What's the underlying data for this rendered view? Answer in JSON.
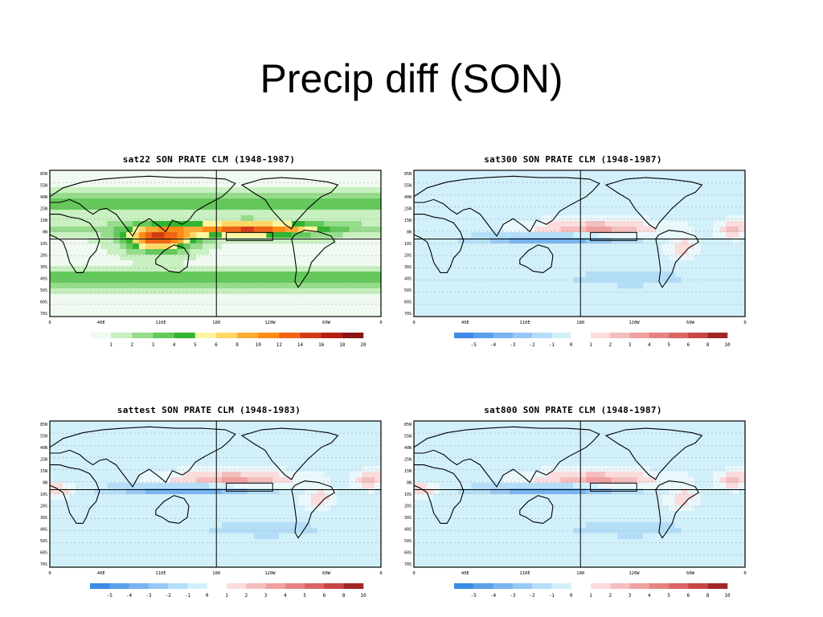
{
  "slide": {
    "title": "Precip diff (SON)"
  },
  "panels": [
    {
      "id": "tl",
      "title": "sat22 SON PRATE CLM (1948-1987)",
      "mode": "abs",
      "colorbar": {
        "labels": [
          "1",
          "2",
          "3",
          "4",
          "5",
          "6",
          "8",
          "10",
          "12",
          "14",
          "16",
          "18",
          "20"
        ],
        "colors": [
          "#f0faf0",
          "#c8f0c0",
          "#96dc8c",
          "#64c85a",
          "#32b432",
          "#fff5a0",
          "#ffd764",
          "#ffaa32",
          "#ff8c14",
          "#f06414",
          "#d23c14",
          "#b41e14",
          "#8c1414"
        ]
      }
    },
    {
      "id": "tr",
      "title": "sat300 SON PRATE CLM (1948-1987)",
      "mode": "diffA",
      "colorbar": {
        "labels": [
          "-5",
          "-4",
          "-3",
          "-2",
          "-1",
          "0",
          "1",
          "2",
          "3",
          "4",
          "5",
          "6",
          "8",
          "10"
        ],
        "colors": [
          "#3c8ce6",
          "#5aa0eb",
          "#78b4f0",
          "#96c8f5",
          "#b4def8",
          "#d2f0fa",
          "#ffffff",
          "#fadcdc",
          "#f5bebe",
          "#f0a0a0",
          "#e68282",
          "#dc6464",
          "#c84646",
          "#a02828"
        ]
      }
    },
    {
      "id": "bl",
      "title": "sattest SON PRATE CLM (1948-1983)",
      "mode": "diffB",
      "colorbar": {
        "labels": [
          "-5",
          "-4",
          "-3",
          "-2",
          "-1",
          "0",
          "1",
          "2",
          "3",
          "4",
          "5",
          "6",
          "8",
          "10"
        ],
        "colors": [
          "#3c8ce6",
          "#5aa0eb",
          "#78b4f0",
          "#96c8f5",
          "#b4def8",
          "#d2f0fa",
          "#ffffff",
          "#fadcdc",
          "#f5bebe",
          "#f0a0a0",
          "#e68282",
          "#dc6464",
          "#c84646",
          "#a02828"
        ]
      }
    },
    {
      "id": "br",
      "title": "sat800 SON PRATE CLM (1948-1987)",
      "mode": "diffB",
      "colorbar": {
        "labels": [
          "-5",
          "-4",
          "-3",
          "-2",
          "-1",
          "0",
          "1",
          "2",
          "3",
          "4",
          "5",
          "6",
          "8",
          "10"
        ],
        "colors": [
          "#3c8ce6",
          "#5aa0eb",
          "#78b4f0",
          "#96c8f5",
          "#b4def8",
          "#d2f0fa",
          "#ffffff",
          "#fadcdc",
          "#f5bebe",
          "#f0a0a0",
          "#e68282",
          "#dc6464",
          "#c84646",
          "#a02828"
        ]
      }
    }
  ],
  "map_axes": {
    "lat_labels": [
      "85N",
      "55N",
      "40N",
      "25N",
      "15N",
      "0N",
      "10S",
      "20S",
      "30S",
      "40S",
      "50S",
      "60S",
      "70S"
    ],
    "lon_labels": [
      "0",
      "40E",
      "110E",
      "180",
      "120W",
      "60W",
      "0"
    ]
  }
}
